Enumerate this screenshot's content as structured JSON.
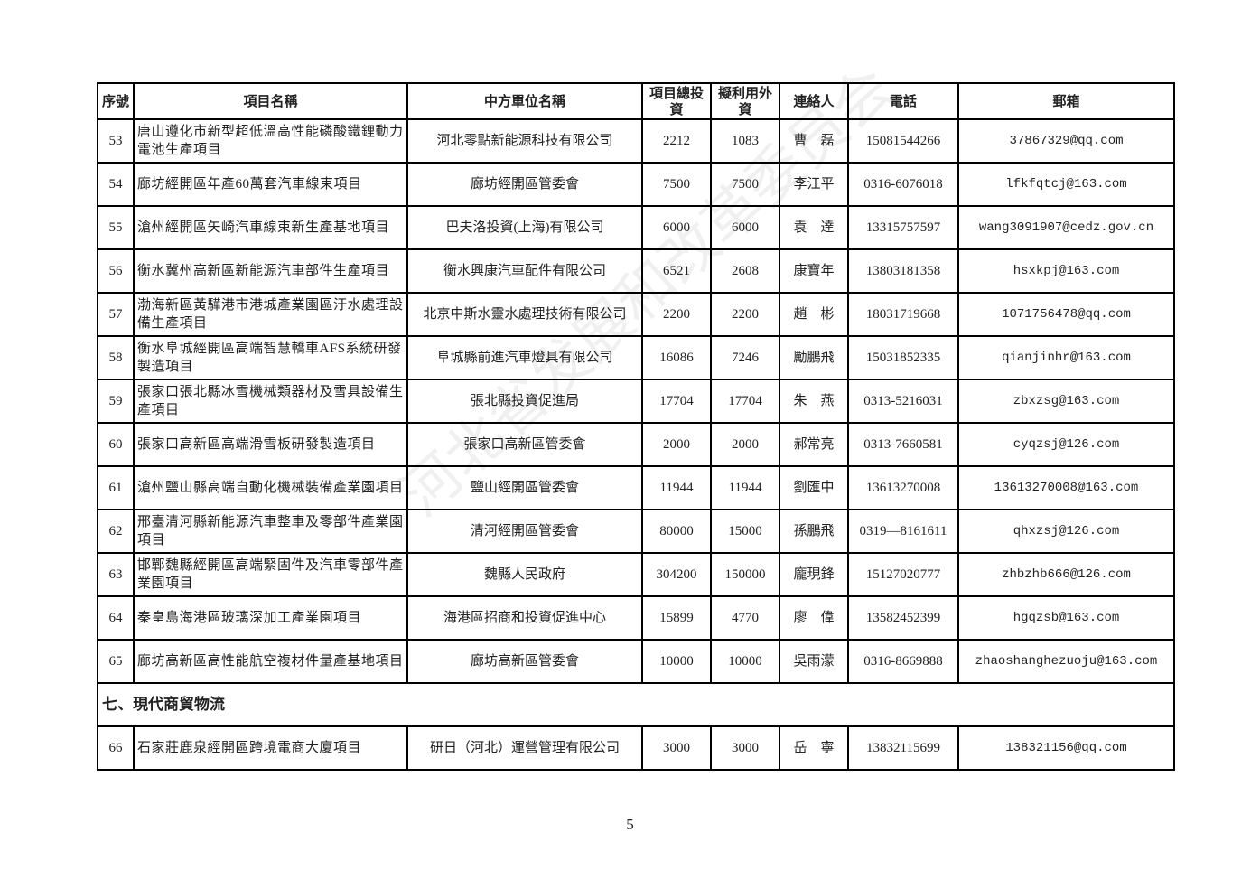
{
  "watermark": "河北省发展和改革委员会",
  "table": {
    "headers": [
      "序號",
      "項目名稱",
      "中方單位名稱",
      "項目總投資",
      "擬利用外資",
      "連絡人",
      "電話",
      "郵箱"
    ],
    "rows": [
      {
        "no": "53",
        "project": "唐山遵化市新型超低溫高性能磷酸鐵鋰動力電池生產項目",
        "unit": "河北零點新能源科技有限公司",
        "investment": "2212",
        "foreign": "1083",
        "contact": "曹　磊",
        "phone": "15081544266",
        "email": "37867329@qq.com"
      },
      {
        "no": "54",
        "project": "廊坊經開區年產60萬套汽車線束項目",
        "unit": "廊坊經開區管委會",
        "investment": "7500",
        "foreign": "7500",
        "contact": "李江平",
        "phone": "0316-6076018",
        "email": "lfkfqtcj@163.com"
      },
      {
        "no": "55",
        "project": "滄州經開區矢崎汽車線束新生產基地項目",
        "unit": "巴夫洛投資(上海)有限公司",
        "investment": "6000",
        "foreign": "6000",
        "contact": "袁　達",
        "phone": "13315757597",
        "email": "wang3091907@cedz.gov.cn"
      },
      {
        "no": "56",
        "project": "衡水冀州高新區新能源汽車部件生產項目",
        "unit": "衡水興康汽車配件有限公司",
        "investment": "6521",
        "foreign": "2608",
        "contact": "康寶年",
        "phone": "13803181358",
        "email": "hsxkpj@163.com"
      },
      {
        "no": "57",
        "project": "渤海新區黃驊港市港城產業園區汙水處理設備生產項目",
        "unit": "北京中斯水靈水處理技術有限公司",
        "investment": "2200",
        "foreign": "2200",
        "contact": "趙　彬",
        "phone": "18031719668",
        "email": "1071756478@qq.com"
      },
      {
        "no": "58",
        "project": "衡水阜城經開區高端智慧轎車AFS系統研發製造項目",
        "unit": "阜城縣前進汽車燈具有限公司",
        "investment": "16086",
        "foreign": "7246",
        "contact": "勵鵬飛",
        "phone": "15031852335",
        "email": "qianjinhr@163.com"
      },
      {
        "no": "59",
        "project": "張家口張北縣冰雪機械類器材及雪具設備生產項目",
        "unit": "張北縣投資促進局",
        "investment": "17704",
        "foreign": "17704",
        "contact": "朱　燕",
        "phone": "0313-5216031",
        "email": "zbxzsg@163.com"
      },
      {
        "no": "60",
        "project": "張家口高新區高端滑雪板研發製造項目",
        "unit": "張家口高新區管委會",
        "investment": "2000",
        "foreign": "2000",
        "contact": "郝常亮",
        "phone": "0313-7660581",
        "email": "cyqzsj@126.com"
      },
      {
        "no": "61",
        "project": "滄州鹽山縣高端自動化機械裝備產業園項目",
        "unit": "鹽山經開區管委會",
        "investment": "11944",
        "foreign": "11944",
        "contact": "劉匯中",
        "phone": "13613270008",
        "email": "13613270008@163.com"
      },
      {
        "no": "62",
        "project": "邢臺清河縣新能源汽車整車及零部件產業園項目",
        "unit": "清河經開區管委會",
        "investment": "80000",
        "foreign": "15000",
        "contact": "孫鵬飛",
        "phone": "0319—8161611",
        "email": "qhxzsj@126.com"
      },
      {
        "no": "63",
        "project": "邯鄲魏縣經開區高端緊固件及汽車零部件產業園項目",
        "unit": "魏縣人民政府",
        "investment": "304200",
        "foreign": "150000",
        "contact": "龐現鋒",
        "phone": "15127020777",
        "email": "zhbzhb666@126.com"
      },
      {
        "no": "64",
        "project": "秦皇島海港區玻璃深加工產業園項目",
        "unit": "海港區招商和投資促進中心",
        "investment": "15899",
        "foreign": "4770",
        "contact": "廖　偉",
        "phone": "13582452399",
        "email": "hgqzsb@163.com"
      },
      {
        "no": "65",
        "project": "廊坊高新區高性能航空複材件量產基地項目",
        "unit": "廊坊高新區管委會",
        "investment": "10000",
        "foreign": "10000",
        "contact": "吳雨濛",
        "phone": "0316-8669888",
        "email": "zhaoshanghezuoju@163.com"
      }
    ],
    "section": "七、現代商貿物流",
    "rows2": [
      {
        "no": "66",
        "project": "石家莊鹿泉經開區跨境電商大廈項目",
        "unit": "研日（河北）運營管理有限公司",
        "investment": "3000",
        "foreign": "3000",
        "contact": "岳　寧",
        "phone": "13832115699",
        "email": "138321156@qq.com"
      }
    ]
  },
  "page_number": "5"
}
